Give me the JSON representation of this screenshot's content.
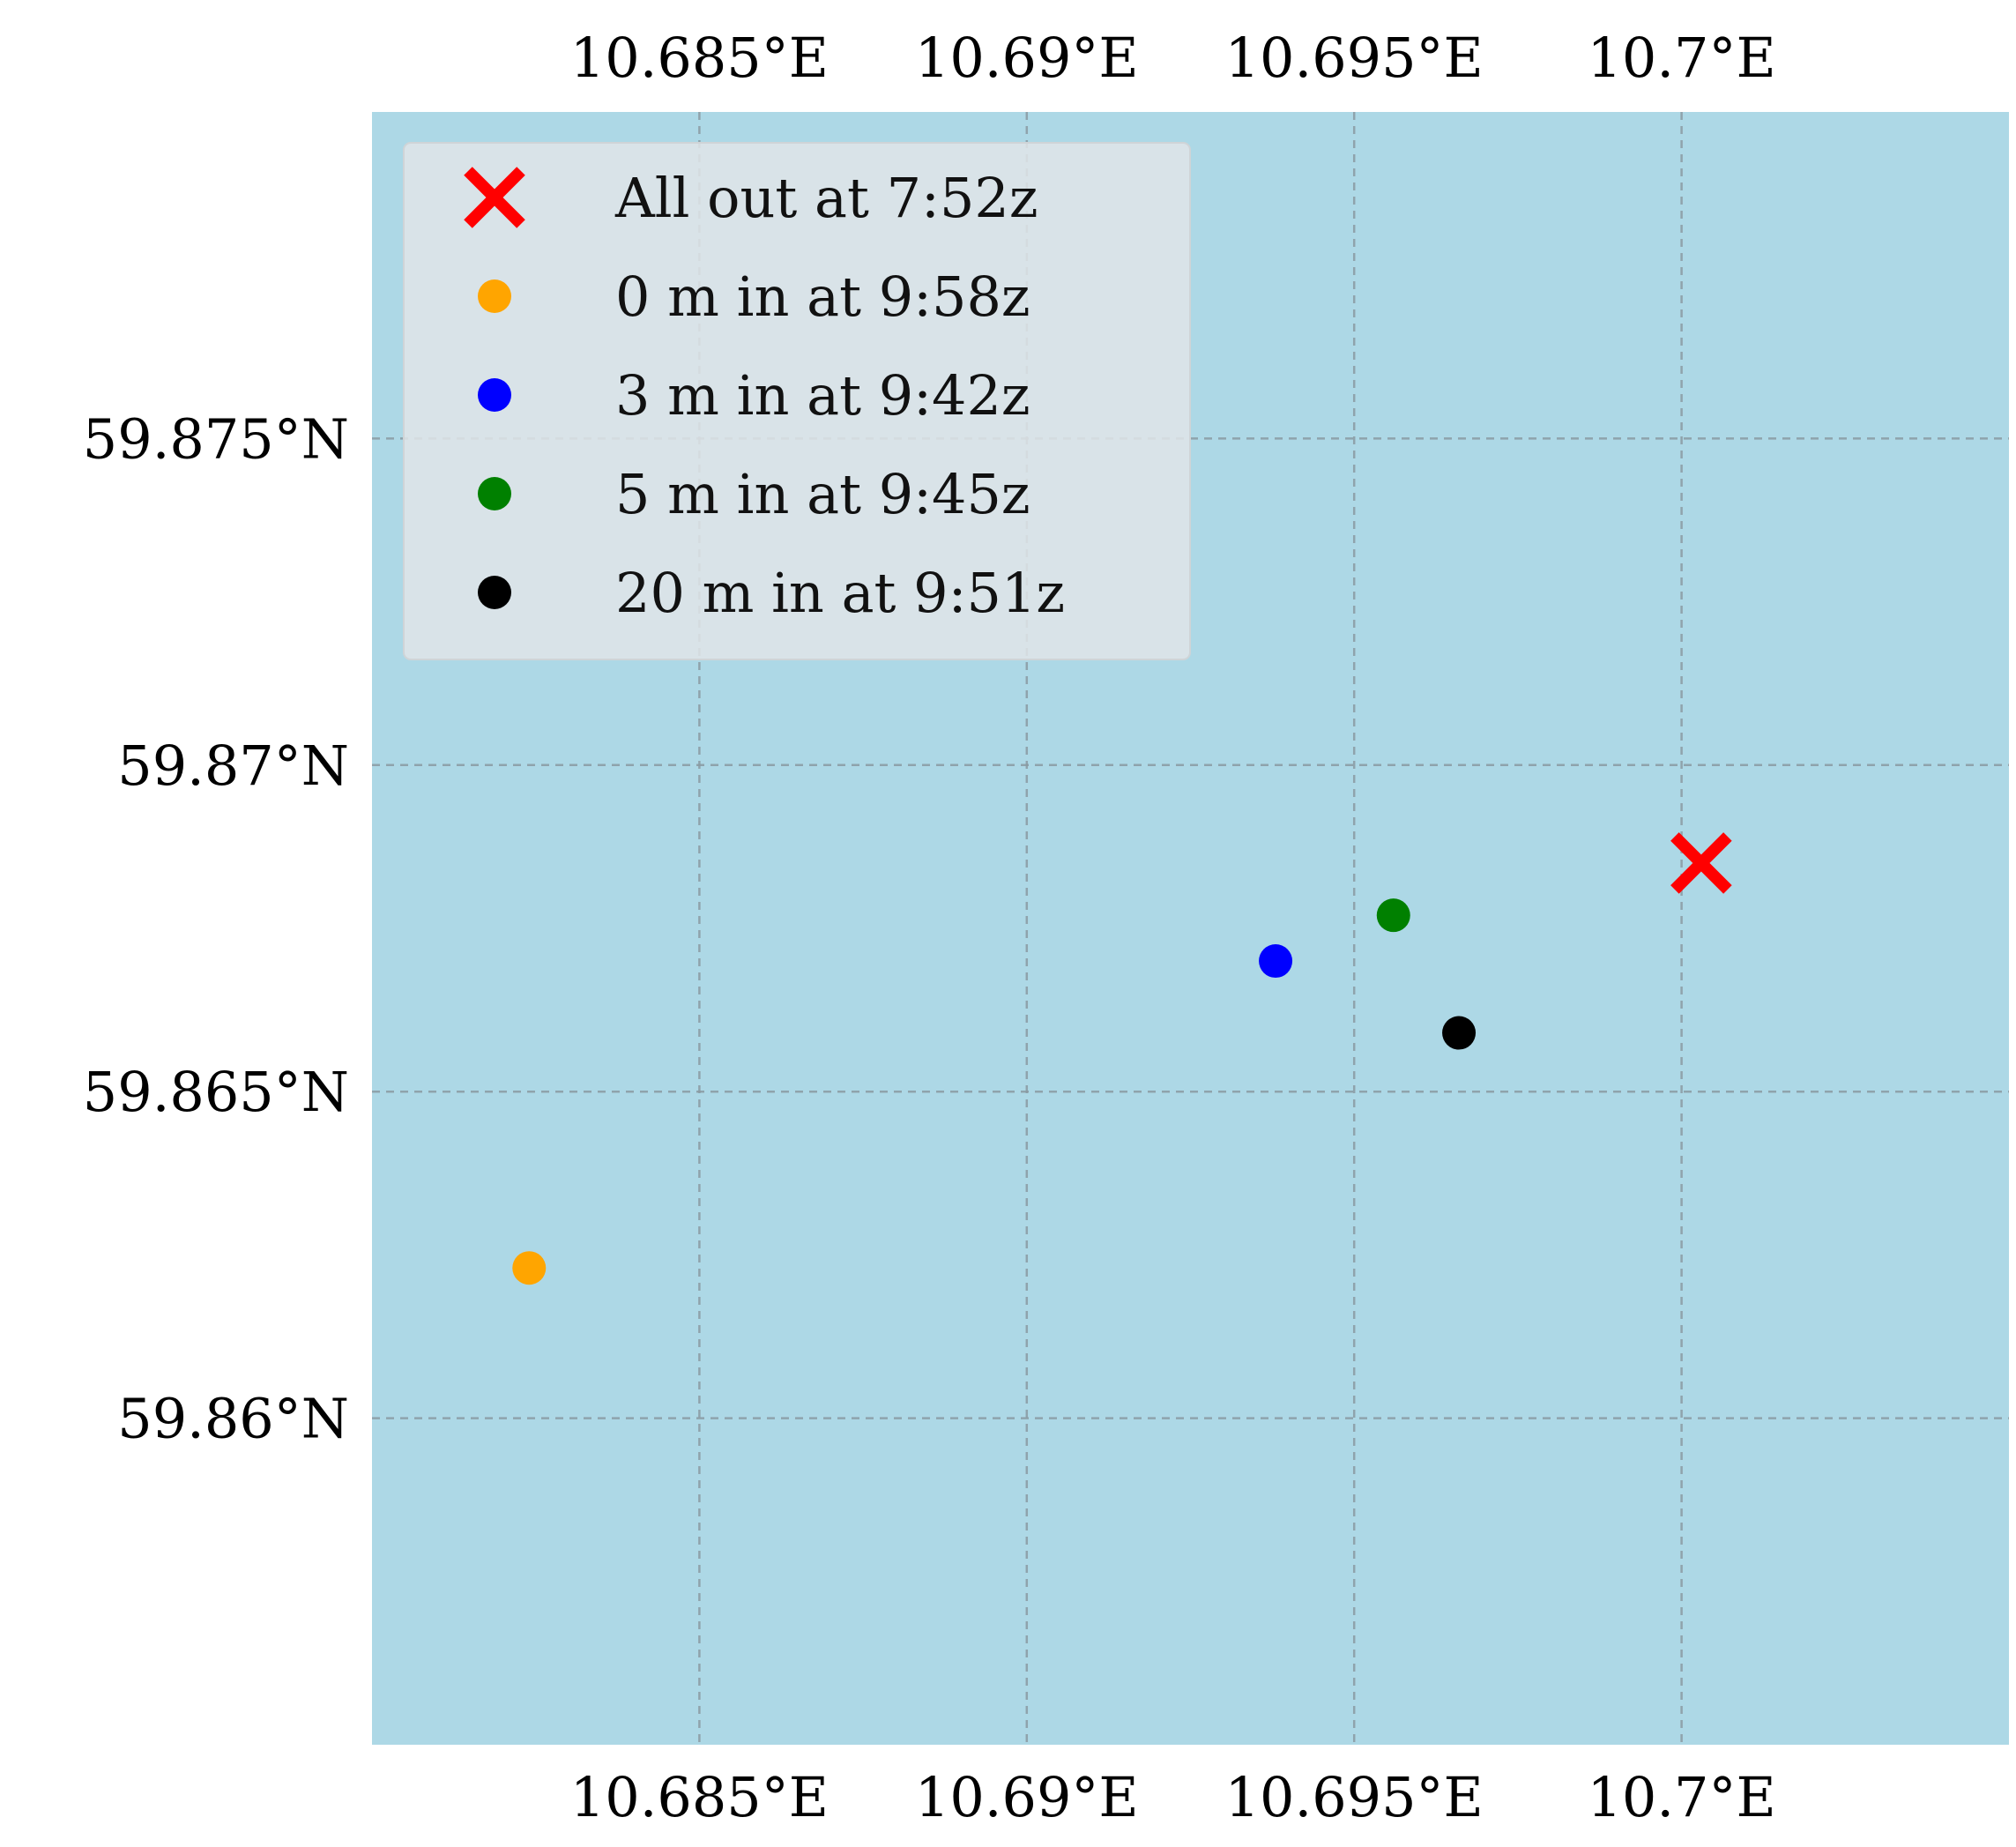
{
  "map": {
    "background_color": "#add8e6",
    "x_axis": {
      "range": [
        10.68,
        10.705
      ],
      "ticks": [
        {
          "value": 10.685,
          "label": "10.685°E"
        },
        {
          "value": 10.69,
          "label": "10.69°E"
        },
        {
          "value": 10.695,
          "label": "10.695°E"
        },
        {
          "value": 10.7,
          "label": "10.7°E"
        }
      ]
    },
    "y_axis": {
      "range": [
        59.855,
        59.88
      ],
      "ticks": [
        {
          "value": 59.875,
          "label": "59.875°N"
        },
        {
          "value": 59.87,
          "label": "59.87°N"
        },
        {
          "value": 59.865,
          "label": "59.865°N"
        },
        {
          "value": 59.86,
          "label": "59.86°N"
        }
      ]
    },
    "grid": true,
    "legend_position": "upper-left"
  },
  "chart_data": {
    "type": "scatter",
    "series": [
      {
        "name": "All out at 7:52z",
        "marker": "x",
        "color": "#ff0000",
        "points": [
          {
            "lon": 10.7003,
            "lat": 59.8685
          }
        ]
      },
      {
        "name": "0 m in at 9:58z",
        "marker": "circle",
        "color": "#ffa500",
        "points": [
          {
            "lon": 10.6824,
            "lat": 59.8623
          }
        ]
      },
      {
        "name": "3 m in at 9:42z",
        "marker": "circle",
        "color": "#0000ff",
        "points": [
          {
            "lon": 10.6938,
            "lat": 59.867
          }
        ]
      },
      {
        "name": "5 m in at 9:45z",
        "marker": "circle",
        "color": "#008000",
        "points": [
          {
            "lon": 10.6956,
            "lat": 59.8677
          }
        ]
      },
      {
        "name": "20 m in at 9:51z",
        "marker": "circle",
        "color": "#000000",
        "points": [
          {
            "lon": 10.6966,
            "lat": 59.8659
          }
        ]
      }
    ]
  }
}
